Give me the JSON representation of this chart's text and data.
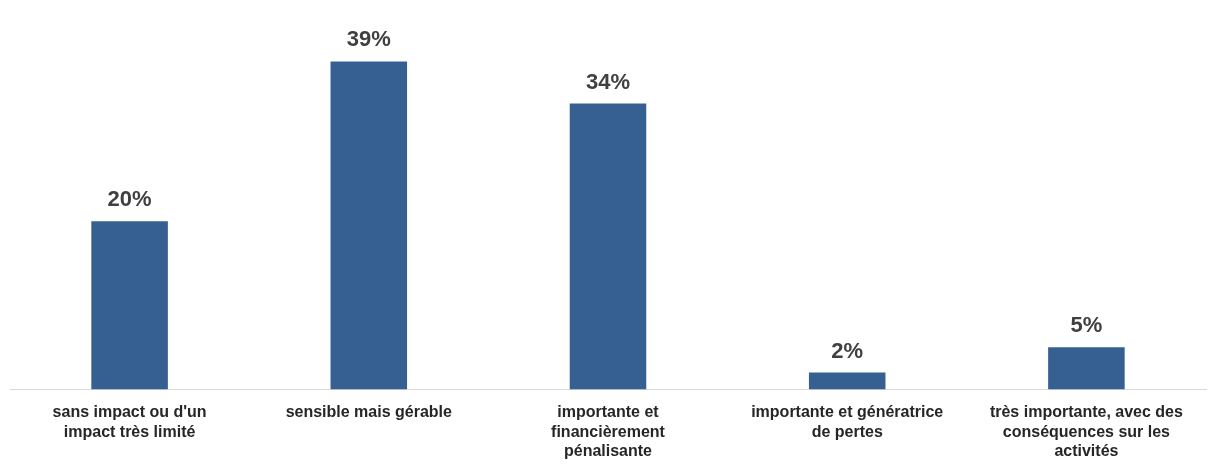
{
  "chart_data": {
    "type": "bar",
    "categories": [
      "sans impact ou d'un impact très limité",
      "sensible mais gérable",
      "importante et financièrement pénalisante",
      "importante et génératrice de pertes",
      "très importante, avec des conséquences sur les activités"
    ],
    "values": [
      20,
      39,
      34,
      2,
      5
    ],
    "color": "#376092",
    "value_labels": [
      "20%",
      "39%",
      "34%",
      "2%",
      "5%"
    ],
    "grid": false,
    "legend": false
  }
}
